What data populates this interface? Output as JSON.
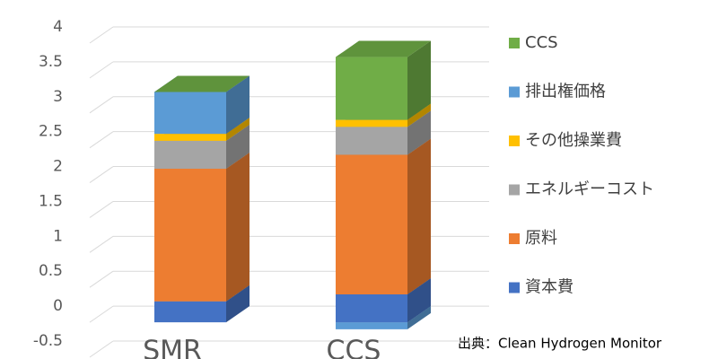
{
  "chart_data": {
    "type": "bar3d_stacked",
    "categories": [
      "SMR",
      "CCS"
    ],
    "series": [
      {
        "name": "資本費",
        "color": "#4472c4",
        "values": [
          0.3,
          0.4
        ]
      },
      {
        "name": "原料",
        "color": "#ed7d31",
        "values": [
          1.9,
          2.0
        ]
      },
      {
        "name": "エネルギーコスト",
        "color": "#a5a5a5",
        "values": [
          0.4,
          0.4
        ]
      },
      {
        "name": "その他操業費",
        "color": "#ffc000",
        "values": [
          0.1,
          0.1
        ]
      },
      {
        "name": "排出権価格",
        "color": "#5b9bd5",
        "values": [
          0.6,
          -0.1
        ]
      },
      {
        "name": "CCS",
        "color": "#70ad47",
        "values": [
          0,
          0.9
        ]
      }
    ],
    "ylim": [
      -0.5,
      4
    ],
    "yticks": [
      -0.5,
      0,
      0.5,
      1,
      1.5,
      2,
      2.5,
      3,
      3.5,
      4
    ],
    "grid": true,
    "annotation": "出典：Clean Hydrogen Monitor"
  }
}
